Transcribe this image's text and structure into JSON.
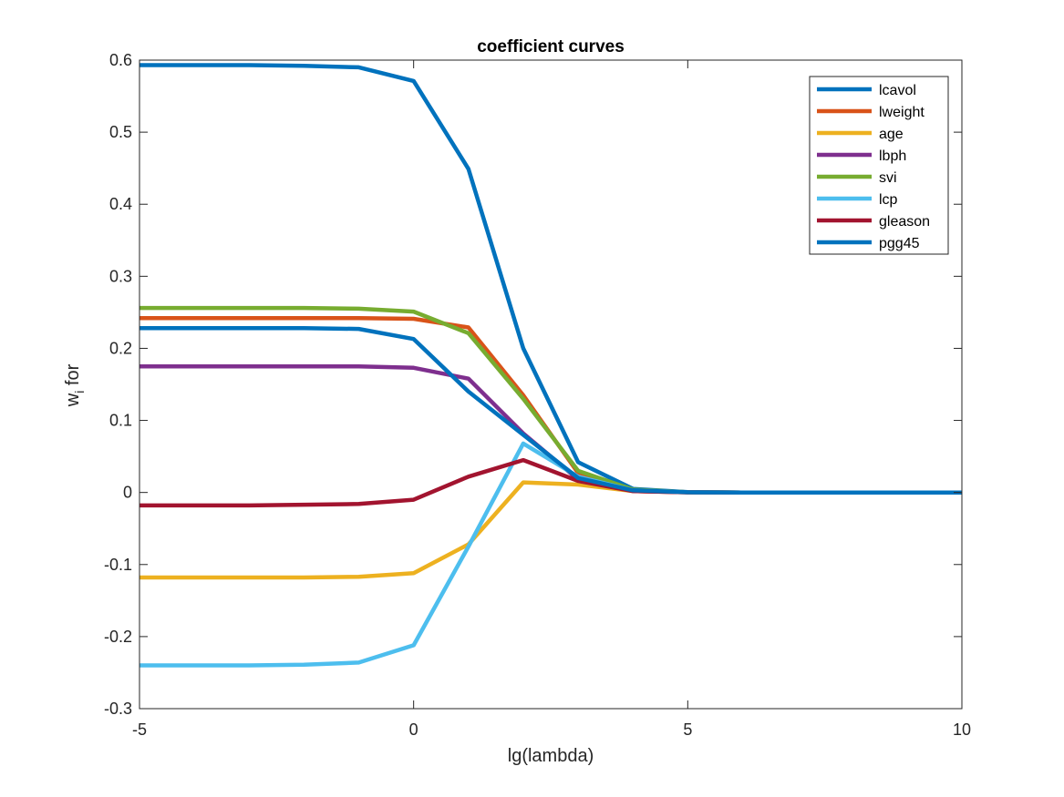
{
  "chart_data": {
    "type": "line",
    "title": "coefficient curves",
    "xlabel": "lg(lambda)",
    "ylabel": "w",
    "ylabel_subscript": "i",
    "ylabel_suffix": " for",
    "xlim": [
      -5,
      10
    ],
    "ylim": [
      -0.3,
      0.6
    ],
    "xticks": [
      -5,
      0,
      5,
      10
    ],
    "xtick_labels": [
      "-5",
      "0",
      "5",
      "10"
    ],
    "yticks": [
      -0.3,
      -0.2,
      -0.1,
      0,
      0.1,
      0.2,
      0.3,
      0.4,
      0.5,
      0.6
    ],
    "ytick_labels": [
      "-0.3",
      "-0.2",
      "-0.1",
      "0",
      "0.1",
      "0.2",
      "0.3",
      "0.4",
      "0.5",
      "0.6"
    ],
    "grid": false,
    "legend_position": "top-right",
    "x": [
      -5,
      -4,
      -3,
      -2,
      -1,
      0,
      1,
      2,
      3,
      4,
      5,
      6,
      7,
      8,
      9,
      10
    ],
    "series": [
      {
        "name": "lcavol",
        "color": "#0072BD",
        "values": [
          0.593,
          0.593,
          0.593,
          0.592,
          0.59,
          0.571,
          0.449,
          0.2,
          0.042,
          0.005,
          0.0005,
          0,
          0,
          0,
          0,
          0
        ]
      },
      {
        "name": "lweight",
        "color": "#D95319",
        "values": [
          0.242,
          0.242,
          0.242,
          0.242,
          0.242,
          0.241,
          0.229,
          0.135,
          0.027,
          0.003,
          0.0003,
          0,
          0,
          0,
          0,
          0
        ]
      },
      {
        "name": "age",
        "color": "#EDB120",
        "values": [
          -0.118,
          -0.118,
          -0.118,
          -0.118,
          -0.117,
          -0.112,
          -0.072,
          0.014,
          0.011,
          0.002,
          0.0002,
          0,
          0,
          0,
          0,
          0
        ]
      },
      {
        "name": "lbph",
        "color": "#7E2F8E",
        "values": [
          0.175,
          0.175,
          0.175,
          0.175,
          0.175,
          0.173,
          0.158,
          0.082,
          0.018,
          0.002,
          0.0002,
          0,
          0,
          0,
          0,
          0
        ]
      },
      {
        "name": "svi",
        "color": "#77AC30",
        "values": [
          0.256,
          0.256,
          0.256,
          0.256,
          0.255,
          0.251,
          0.221,
          0.13,
          0.03,
          0.004,
          0.0004,
          0,
          0,
          0,
          0,
          0
        ]
      },
      {
        "name": "lcp",
        "color": "#4DBEEE",
        "values": [
          -0.24,
          -0.24,
          -0.24,
          -0.239,
          -0.236,
          -0.212,
          -0.075,
          0.068,
          0.022,
          0.003,
          0.0003,
          0,
          0,
          0,
          0,
          0
        ]
      },
      {
        "name": "gleason",
        "color": "#A2142F",
        "values": [
          -0.018,
          -0.018,
          -0.018,
          -0.017,
          -0.016,
          -0.01,
          0.022,
          0.045,
          0.016,
          0.002,
          0.0002,
          0,
          0,
          0,
          0,
          0
        ]
      },
      {
        "name": "pgg45",
        "color": "#0072BD",
        "values": [
          0.228,
          0.228,
          0.228,
          0.228,
          0.227,
          0.213,
          0.14,
          0.08,
          0.02,
          0.003,
          0.0003,
          0,
          0,
          0,
          0,
          0
        ]
      }
    ]
  }
}
